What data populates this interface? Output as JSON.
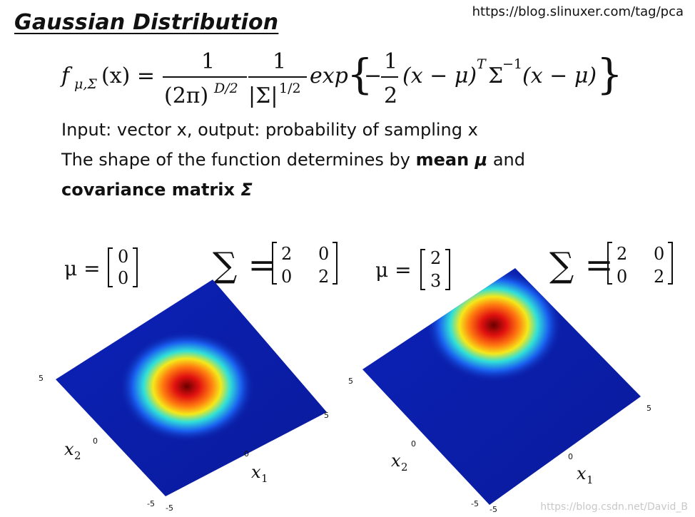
{
  "header": {
    "title": "Gaussian Distribution",
    "url": "https://blog.slinuxer.com/tag/pca"
  },
  "formula": {
    "lhs_f": "f",
    "lhs_sub": "μ,Σ",
    "lhs_arg": "(x) =",
    "frac1_num": "1",
    "frac1_den": "(2π)",
    "frac1_den_sup": "D/2",
    "frac2_num": "1",
    "frac2_den": "|Σ|",
    "frac2_den_sup": "1/2",
    "exp": "exp",
    "minus": "−",
    "half_num": "1",
    "half_den": "2",
    "body1": "(x − μ)",
    "sup_T": "T",
    "sigma": "Σ",
    "sup_inv": "−1",
    "body2": "(x − μ)"
  },
  "description": {
    "line1": "Input: vector x, output: probability of sampling x",
    "line2_prefix": "The shape of the function determines by ",
    "line2_bold": "mean ",
    "line2_mu": "μ",
    "line2_suffix": " and",
    "line3_bold": "covariance matrix ",
    "line3_sigma": "Σ"
  },
  "plots": [
    {
      "mu_label": "μ =",
      "mu": [
        "0",
        "0"
      ],
      "sigma_label": "∑ =",
      "sigma": [
        [
          "2",
          "0"
        ],
        [
          "0",
          "2"
        ]
      ],
      "x1_label": "x",
      "x1_sub": "1",
      "x2_label": "x",
      "x2_sub": "2",
      "ticks": {
        "x1_max": "5",
        "x1_zero": "0",
        "x2_max": "5",
        "x2_zero": "0",
        "x2_min": "-5",
        "x1_min": "-5"
      }
    },
    {
      "mu_label": "μ =",
      "mu": [
        "2",
        "3"
      ],
      "sigma_label": "∑ =",
      "sigma": [
        [
          "2",
          "0"
        ],
        [
          "0",
          "2"
        ]
      ],
      "x1_label": "x",
      "x1_sub": "1",
      "x2_label": "x",
      "x2_sub": "2",
      "ticks": {
        "x1_max": "5",
        "x1_zero": "0",
        "x2_max": "5",
        "x2_zero": "0",
        "x2_min": "-5",
        "x1_min": "-5"
      }
    }
  ],
  "colors": {
    "surface_base": "#0a1fa8",
    "peak_core": "#7a0000",
    "peak_red": "#e01010",
    "peak_yellow": "#f5e81a",
    "peak_cyan": "#22d8e8",
    "peak_blue": "#1a5cf0"
  },
  "watermark": "https://blog.csdn.net/David_B"
}
